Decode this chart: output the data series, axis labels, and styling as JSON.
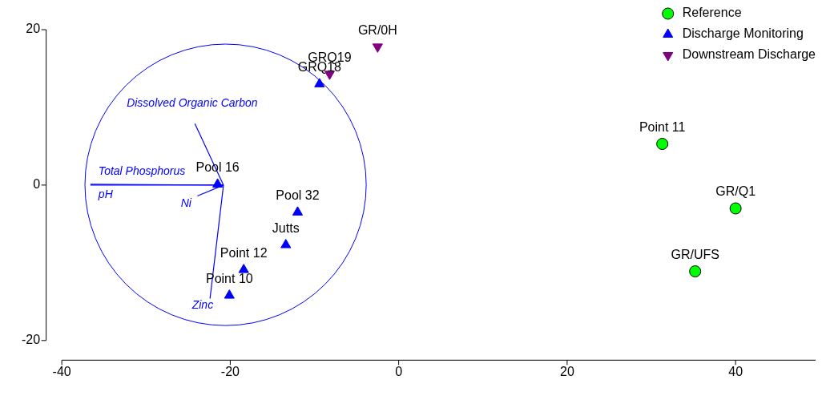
{
  "chart_data": {
    "type": "scatter",
    "xlim": [
      -40,
      49.5
    ],
    "ylim": [
      -20,
      20
    ],
    "xticks": [
      -40,
      -20,
      0,
      20,
      40
    ],
    "yticks": [
      -20,
      0,
      20
    ],
    "legend": "top right",
    "series": [
      {
        "name": "Reference",
        "marker": "circle",
        "color": "#00ff00",
        "x": [
          31.3,
          40.0,
          35.2
        ],
        "values": [
          5.3,
          -3.0,
          -11.1
        ]
      },
      {
        "name": "Discharge Monitoring",
        "marker": "triangle",
        "color": "#0000ff",
        "x": [
          -9.4,
          -21.5,
          -12.0,
          -13.4,
          -18.4,
          -20.1
        ],
        "values": [
          13.0,
          0.1,
          -3.5,
          -7.7,
          -10.9,
          -14.2
        ]
      },
      {
        "name": "Downstream Discharge",
        "marker": "triangle-down",
        "color": "#800080",
        "x": [
          -2.5,
          -8.2
        ],
        "values": [
          17.8,
          14.3
        ]
      },
      {
        "name": "Dissolved Organic Carbon",
        "type": "line",
        "color": "#0000ff",
        "x": [
          -20.8,
          -24.2
        ],
        "values": [
          0,
          7.9
        ]
      },
      {
        "name": "Total Phosphorus",
        "type": "line",
        "color": "#0000ff",
        "x": [
          -20.8,
          -36.6
        ],
        "values": [
          0,
          0.1
        ]
      },
      {
        "name": "pH",
        "type": "line",
        "color": "#0000ff",
        "x": [
          -20.8,
          -36.6
        ],
        "values": [
          0,
          0
        ]
      },
      {
        "name": "Ni",
        "type": "line",
        "color": "#0000ff",
        "x": [
          -20.8,
          -23.9
        ],
        "values": [
          0,
          -1.4
        ]
      },
      {
        "name": "Zinc",
        "type": "line",
        "color": "#0000ff",
        "x": [
          -20.8,
          -22.4
        ],
        "values": [
          0,
          -14.6
        ]
      }
    ],
    "annotations": [
      {
        "text": "Point 11",
        "x": 31.3,
        "y": 5.3
      },
      {
        "text": "GR/Q1",
        "x": 40.0,
        "y": -3.0
      },
      {
        "text": "GR/UFS",
        "x": 35.2,
        "y": -11.1
      },
      {
        "text": "GRQ18",
        "x": -9.4,
        "y": 13.0
      },
      {
        "text": "Pool 16",
        "x": -21.5,
        "y": 0.1
      },
      {
        "text": "Pool 32",
        "x": -12.0,
        "y": -3.5
      },
      {
        "text": "Jutts",
        "x": -13.4,
        "y": -7.7
      },
      {
        "text": "Point 12",
        "x": -18.4,
        "y": -10.9
      },
      {
        "text": "Point 10",
        "x": -20.1,
        "y": -14.2
      },
      {
        "text": "GR/0H",
        "x": -2.5,
        "y": 17.8
      },
      {
        "text": "GRQ19",
        "x": -8.2,
        "y": 14.3
      }
    ]
  }
}
